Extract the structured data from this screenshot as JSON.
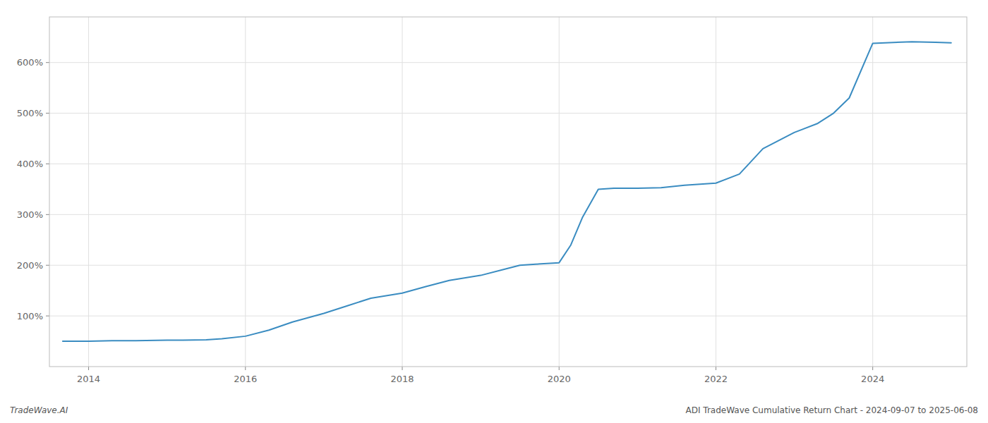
{
  "chart_data": {
    "type": "line",
    "title": "ADI TradeWave Cumulative Return Chart - 2024-09-07 to 2025-06-08",
    "subtitle": "TradeWave.AI",
    "color": "#3a8cc1",
    "grid": true,
    "xlim": [
      2013.5,
      2025.2
    ],
    "ylim": [
      0,
      690
    ],
    "xticks": [
      2014,
      2016,
      2018,
      2020,
      2022,
      2024
    ],
    "yticks": [
      {
        "value": 100,
        "label": "100%"
      },
      {
        "value": 200,
        "label": "200%"
      },
      {
        "value": 300,
        "label": "300%"
      },
      {
        "value": 400,
        "label": "400%"
      },
      {
        "value": 500,
        "label": "500%"
      },
      {
        "value": 600,
        "label": "600%"
      }
    ],
    "x": [
      2013.67,
      2014.0,
      2014.3,
      2014.6,
      2015.0,
      2015.2,
      2015.5,
      2015.7,
      2016.0,
      2016.3,
      2016.6,
      2017.0,
      2017.3,
      2017.6,
      2018.0,
      2018.3,
      2018.6,
      2019.0,
      2019.3,
      2019.5,
      2019.7,
      2020.0,
      2020.15,
      2020.3,
      2020.5,
      2020.7,
      2021.0,
      2021.3,
      2021.6,
      2022.0,
      2022.3,
      2022.6,
      2023.0,
      2023.1,
      2023.3,
      2023.5,
      2023.7,
      2024.0,
      2024.5,
      2024.8,
      2025.0
    ],
    "values": [
      50,
      50,
      51,
      51,
      52,
      52,
      53,
      55,
      60,
      72,
      88,
      105,
      120,
      135,
      145,
      158,
      170,
      180,
      192,
      200,
      202,
      205,
      240,
      295,
      350,
      352,
      352,
      353,
      358,
      362,
      380,
      430,
      462,
      468,
      480,
      500,
      530,
      638,
      641,
      640,
      639
    ]
  }
}
